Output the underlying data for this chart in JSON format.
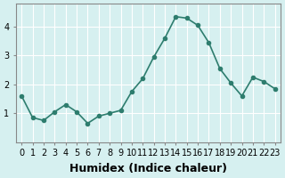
{
  "xlabel": "Humidex (Indice chaleur)",
  "x_values": [
    0,
    1,
    2,
    3,
    4,
    5,
    6,
    7,
    8,
    9,
    10,
    11,
    12,
    13,
    14,
    15,
    16,
    17,
    18,
    19,
    20,
    21,
    22,
    23
  ],
  "y_values": [
    1.6,
    0.85,
    0.75,
    1.05,
    1.3,
    1.05,
    0.65,
    0.9,
    1.0,
    1.1,
    1.75,
    2.2,
    2.95,
    3.6,
    4.35,
    4.3,
    4.05,
    3.45,
    2.55,
    2.05,
    1.6,
    2.25,
    2.1,
    1.85
  ],
  "line_color": "#2e7d6e",
  "marker": "o",
  "marker_size": 3,
  "line_width": 1.2,
  "bg_color": "#d6f0f0",
  "grid_color": "#ffffff",
  "ylim": [
    0,
    4.8
  ],
  "yticks": [
    1,
    2,
    3,
    4
  ],
  "xlabel_fontsize": 9,
  "tick_fontsize": 7
}
